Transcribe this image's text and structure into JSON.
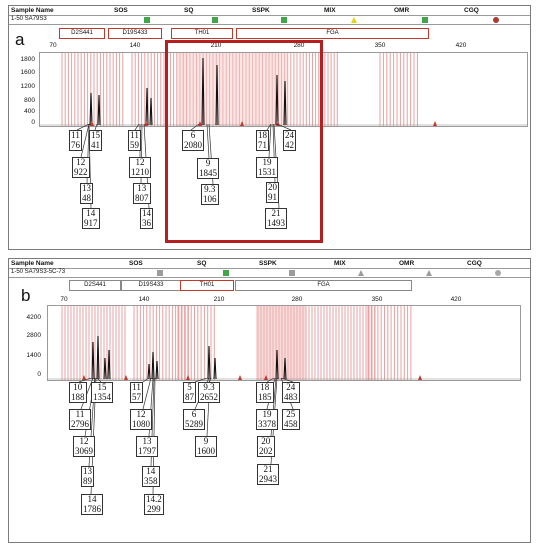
{
  "header_columns": [
    "Sample Name",
    "SOS",
    "SQ",
    "SSPK",
    "MIX",
    "OMR",
    "CGQ"
  ],
  "colors": {
    "pass": "#3fa64a",
    "warn": "#e8d40a",
    "fail": "#b03a2e",
    "neutral": "#9c9c9c",
    "highlight": "#b51f1f",
    "bins": "#e8a0a0"
  },
  "panels": [
    {
      "letter": "a",
      "sample_name": "1-50 SA79S3",
      "indicators": [
        {
          "col": "SOS",
          "shape": "square",
          "state": "pass"
        },
        {
          "col": "SQ",
          "shape": "square",
          "state": "pass"
        },
        {
          "col": "SSPK",
          "shape": "square",
          "state": "pass"
        },
        {
          "col": "MIX",
          "shape": "triangle",
          "state": "warn"
        },
        {
          "col": "OMR",
          "shape": "square",
          "state": "pass"
        },
        {
          "col": "CGQ",
          "shape": "circle",
          "state": "fail"
        }
      ],
      "markers": [
        "D2S441",
        "D19S433",
        "TH01",
        "FGA"
      ],
      "ruler": [
        "70",
        "140",
        "210",
        "280",
        "350",
        "420"
      ],
      "y_ticks": [
        "1800",
        "1600",
        "1200",
        "800",
        "400",
        "0"
      ],
      "alleles": [
        {
          "allele": "11",
          "height": "76"
        },
        {
          "allele": "15",
          "height": "41"
        },
        {
          "allele": "12",
          "height": "922"
        },
        {
          "allele": "13",
          "height": "48"
        },
        {
          "allele": "14",
          "height": "917"
        },
        {
          "allele": "11",
          "height": "59"
        },
        {
          "allele": "12",
          "height": "1210"
        },
        {
          "allele": "13",
          "height": "807"
        },
        {
          "allele": "14",
          "height": "36"
        },
        {
          "allele": "6",
          "height": "2080"
        },
        {
          "allele": "9",
          "height": "1845"
        },
        {
          "allele": "9.3",
          "height": "106"
        },
        {
          "allele": "18",
          "height": "71"
        },
        {
          "allele": "24",
          "height": "42"
        },
        {
          "allele": "19",
          "height": "1531"
        },
        {
          "allele": "20",
          "height": "91"
        },
        {
          "allele": "21",
          "height": "1493"
        }
      ]
    },
    {
      "letter": "b",
      "sample_name": "1-50 SA79S3-5C-73",
      "indicators": [
        {
          "col": "SOS",
          "shape": "square",
          "state": "neutral"
        },
        {
          "col": "SQ",
          "shape": "square",
          "state": "pass"
        },
        {
          "col": "SSPK",
          "shape": "square",
          "state": "neutral"
        },
        {
          "col": "MIX",
          "shape": "triangle",
          "state": "neutral"
        },
        {
          "col": "OMR",
          "shape": "triangle",
          "state": "neutral"
        },
        {
          "col": "CGQ",
          "shape": "circle",
          "state": "neutral"
        }
      ],
      "markers": [
        "D2S441",
        "D19S433",
        "TH01",
        "FGA"
      ],
      "ruler": [
        "70",
        "140",
        "210",
        "280",
        "350",
        "420"
      ],
      "y_ticks": [
        "4200",
        "2800",
        "1400",
        "0"
      ],
      "alleles": [
        {
          "allele": "10",
          "height": "188"
        },
        {
          "allele": "15",
          "height": "1354"
        },
        {
          "allele": "11",
          "height": "2796"
        },
        {
          "allele": "12",
          "height": "3069"
        },
        {
          "allele": "13",
          "height": "89"
        },
        {
          "allele": "14",
          "height": "1786"
        },
        {
          "allele": "11",
          "height": "57"
        },
        {
          "allele": "12",
          "height": "1080"
        },
        {
          "allele": "13",
          "height": "1797"
        },
        {
          "allele": "14",
          "height": "358"
        },
        {
          "allele": "14.2",
          "height": "299"
        },
        {
          "allele": "5",
          "height": "87"
        },
        {
          "allele": "9.3",
          "height": "2652"
        },
        {
          "allele": "6",
          "height": "5289"
        },
        {
          "allele": "9",
          "height": "1600"
        },
        {
          "allele": "18",
          "height": "185"
        },
        {
          "allele": "24",
          "height": "483"
        },
        {
          "allele": "19",
          "height": "3378"
        },
        {
          "allele": "25",
          "height": "458"
        },
        {
          "allele": "20",
          "height": "202"
        },
        {
          "allele": "21",
          "height": "2943"
        }
      ]
    }
  ]
}
